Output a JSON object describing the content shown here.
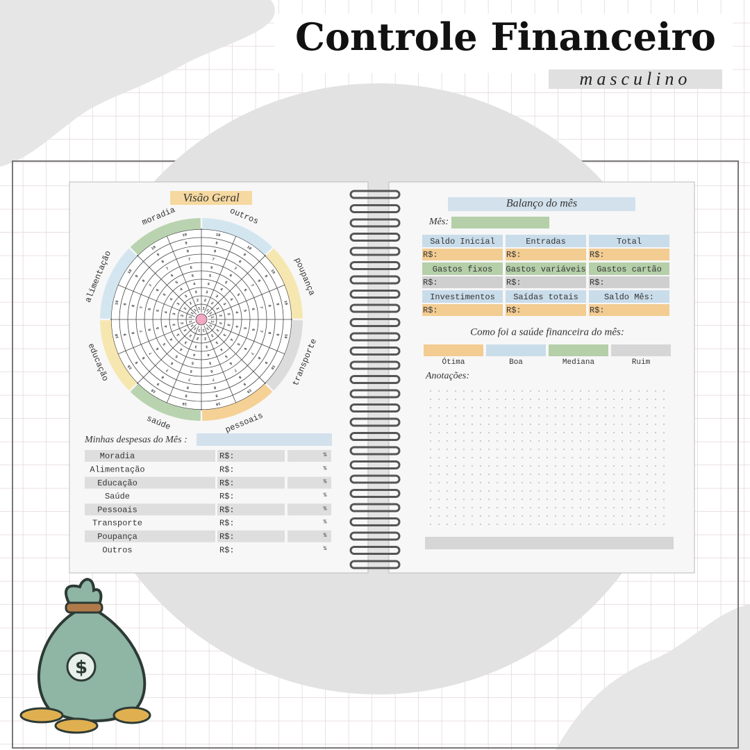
{
  "header": {
    "title": "Controle Financeiro",
    "subtitle": "masculino"
  },
  "left_page": {
    "title": "Visão Geral",
    "wheel": {
      "segments": [
        {
          "label": "outros",
          "color": "#d3e6f0"
        },
        {
          "label": "poupança",
          "color": "#f6e7b0"
        },
        {
          "label": "transporte",
          "color": "#dcdcdc"
        },
        {
          "label": "pessoais",
          "color": "#f5d196"
        },
        {
          "label": "saúde",
          "color": "#b9d3b0"
        },
        {
          "label": "educação",
          "color": "#f6e7b0"
        },
        {
          "label": "alimentação",
          "color": "#d3e6f0"
        },
        {
          "label": "moradia",
          "color": "#b9d3b0"
        }
      ],
      "scale": [
        1,
        2,
        3,
        4,
        5,
        6,
        7,
        8,
        9,
        10
      ]
    },
    "expenses_label": "Minhas despesas do Mês :",
    "expenses": [
      "Moradia",
      "Alimentação",
      "Educação",
      "Saúde",
      "Pessoais",
      "Transporte",
      "Poupança",
      "Outros"
    ],
    "currency": "R$:",
    "percent": "%"
  },
  "right_page": {
    "title": "Balanço do mês",
    "month_label": "Mês:",
    "boxes": [
      {
        "label": "Saldo Inicial",
        "color": "#c9dcea",
        "value_color": "#f3cc92"
      },
      {
        "label": "Entradas",
        "color": "#c9dcea",
        "value_color": "#f3cc92"
      },
      {
        "label": "Total",
        "color": "#c9dcea",
        "value_color": "#f3cc92"
      },
      {
        "label": "Gastos fixos",
        "color": "#b5cfa9",
        "value_color": "#cfcfcf"
      },
      {
        "label": "Gastos variáveis",
        "color": "#b5cfa9",
        "value_color": "#cfcfcf"
      },
      {
        "label": "Gastos cartão",
        "color": "#b5cfa9",
        "value_color": "#cfcfcf"
      },
      {
        "label": "Investimentos",
        "color": "#c9dcea",
        "value_color": "#f3cc92"
      },
      {
        "label": "Saídas totais",
        "color": "#c9dcea",
        "value_color": "#f3cc92"
      },
      {
        "label": "Saldo Mês:",
        "color": "#c9dcea",
        "value_color": "#f3cc92"
      }
    ],
    "currency": "R$:",
    "health_question": "Como foi a saúde financeira do mês:",
    "health": [
      {
        "label": "Ótima",
        "color": "#f3cc92"
      },
      {
        "label": "Boa",
        "color": "#c9dcea"
      },
      {
        "label": "Mediana",
        "color": "#b5cfa9"
      },
      {
        "label": "Ruim",
        "color": "#d6d6d6"
      }
    ],
    "notes_label": "Anotações:"
  }
}
